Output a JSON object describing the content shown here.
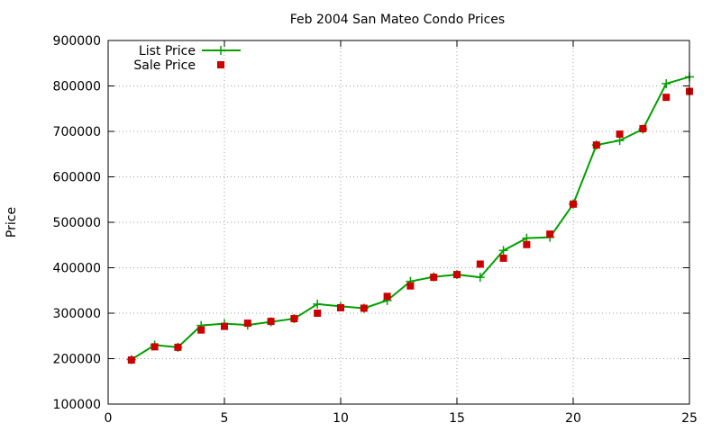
{
  "chart_data": {
    "type": "line",
    "title": "Feb 2004 San Mateo Condo Prices",
    "xlabel": "",
    "ylabel": "Price",
    "xlim": [
      0,
      25
    ],
    "ylim": [
      100000,
      900000
    ],
    "x_ticks": [
      0,
      5,
      10,
      15,
      20,
      25
    ],
    "y_ticks": [
      100000,
      200000,
      300000,
      400000,
      500000,
      600000,
      700000,
      800000,
      900000
    ],
    "grid": true,
    "legend_position": "top-left",
    "series": [
      {
        "name": "List Price",
        "style": "line-with-plus-markers",
        "color": "#00a000",
        "x": [
          1,
          2,
          3,
          4,
          5,
          6,
          7,
          8,
          9,
          10,
          11,
          12,
          13,
          14,
          15,
          16,
          17,
          18,
          19,
          20,
          21,
          22,
          23,
          24,
          25
        ],
        "values": [
          198000,
          230000,
          225000,
          273000,
          277000,
          274000,
          281000,
          288000,
          320000,
          315000,
          311000,
          328000,
          370000,
          380000,
          385000,
          379000,
          438000,
          465000,
          467000,
          540000,
          670000,
          680000,
          705000,
          805000,
          820000
        ]
      },
      {
        "name": "Sale Price",
        "style": "square-markers",
        "color": "#cc0000",
        "x": [
          1,
          2,
          3,
          4,
          5,
          6,
          7,
          8,
          9,
          10,
          11,
          12,
          13,
          14,
          15,
          16,
          17,
          18,
          19,
          20,
          21,
          22,
          23,
          24,
          25
        ],
        "values": [
          197000,
          226000,
          225000,
          263000,
          271000,
          278000,
          282000,
          288000,
          300000,
          312000,
          311000,
          337000,
          360000,
          379000,
          385000,
          408000,
          421000,
          451000,
          474000,
          540000,
          670000,
          694000,
          706000,
          775000,
          788000
        ]
      }
    ]
  }
}
